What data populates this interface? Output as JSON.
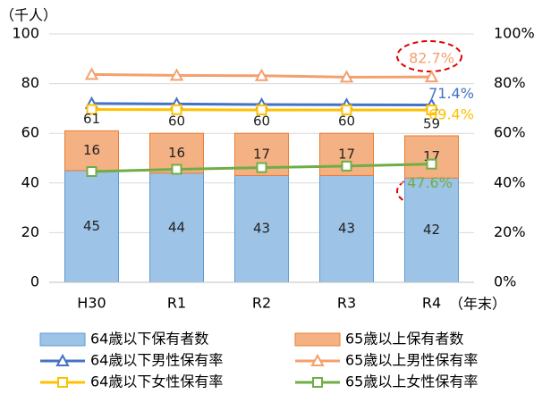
{
  "chart_data": {
    "type": "bar",
    "stacked": true,
    "y_axis_label": "（千人）",
    "x_axis_label": "（年末）",
    "categories": [
      "H30",
      "R1",
      "R2",
      "R3",
      "R4"
    ],
    "ylim": [
      0,
      100
    ],
    "yticks": [
      0,
      20,
      40,
      60,
      80,
      100
    ],
    "y2lim": [
      0,
      100
    ],
    "y2ticks": [
      {
        "value": 0,
        "label": "0%"
      },
      {
        "value": 20,
        "label": "20%"
      },
      {
        "value": 40,
        "label": "40%"
      },
      {
        "value": 60,
        "label": "60%"
      },
      {
        "value": 80,
        "label": "80%"
      },
      {
        "value": 100,
        "label": "100%"
      }
    ],
    "totals": [
      61,
      60,
      60,
      60,
      59
    ],
    "series": [
      {
        "name": "64歳以下保有者数",
        "type": "bar",
        "color": "#9dc3e6",
        "edge": "#5b9bd5",
        "values": [
          45,
          44,
          43,
          43,
          42
        ]
      },
      {
        "name": "65歳以上保有者数",
        "type": "bar",
        "color": "#f4b183",
        "edge": "#ed7d31",
        "values": [
          16,
          16,
          17,
          17,
          17
        ]
      },
      {
        "name": "64歳以下男性保有率",
        "type": "line",
        "axis": "y2",
        "marker": "triangle",
        "color": "#4472c4",
        "values": [
          72.0,
          71.8,
          71.6,
          71.5,
          71.4
        ],
        "value_labels": [
          null,
          null,
          null,
          null,
          "71.4%"
        ]
      },
      {
        "name": "65歳以上男性保有率",
        "type": "line",
        "axis": "y2",
        "marker": "triangle",
        "color": "#f4a06e",
        "values": [
          83.7,
          83.3,
          83.2,
          82.6,
          82.7
        ],
        "value_labels": [
          null,
          null,
          null,
          null,
          "82.7%"
        ]
      },
      {
        "name": "64歳以下女性保有率",
        "type": "line",
        "axis": "y2",
        "marker": "square",
        "color": "#ffc000",
        "values": [
          69.6,
          69.5,
          69.4,
          69.4,
          69.4
        ],
        "value_labels": [
          null,
          null,
          null,
          null,
          "69.4%"
        ]
      },
      {
        "name": "65歳以上女性保有率",
        "type": "line",
        "axis": "y2",
        "marker": "square",
        "color": "#70ad47",
        "values": [
          44.6,
          45.5,
          46.2,
          46.8,
          47.6
        ],
        "value_labels": [
          null,
          null,
          null,
          null,
          "47.6%"
        ]
      }
    ]
  }
}
